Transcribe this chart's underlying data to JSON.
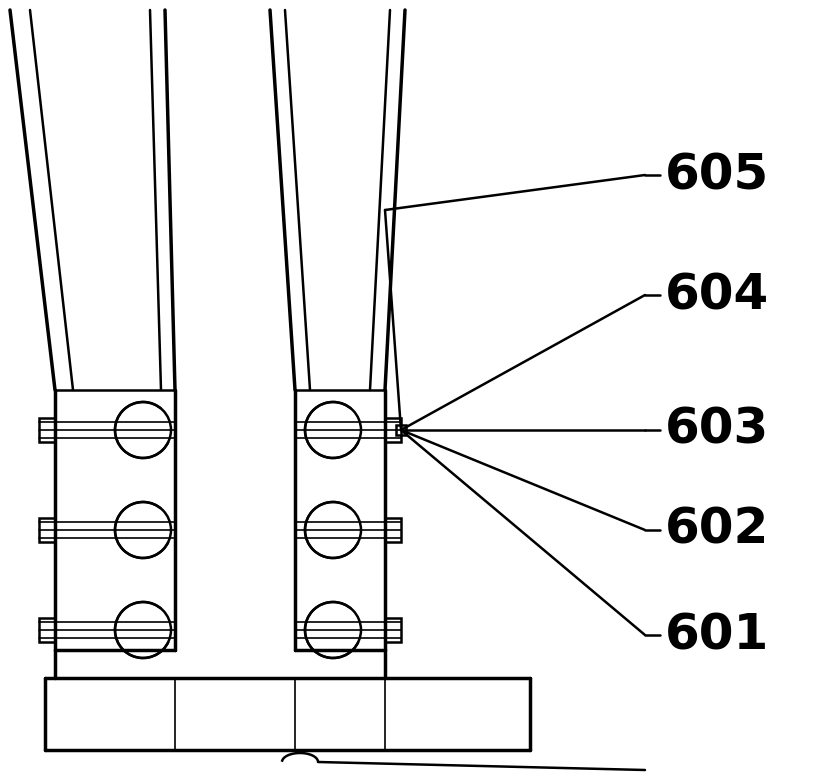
{
  "bg_color": "#ffffff",
  "line_color": "#000000",
  "lw_thin": 1.2,
  "lw_med": 1.8,
  "lw_thick": 2.5,
  "figsize": [
    8.38,
    7.77
  ],
  "labels": [
    "605",
    "604",
    "603",
    "602",
    "601"
  ],
  "label_fontsize": 36
}
